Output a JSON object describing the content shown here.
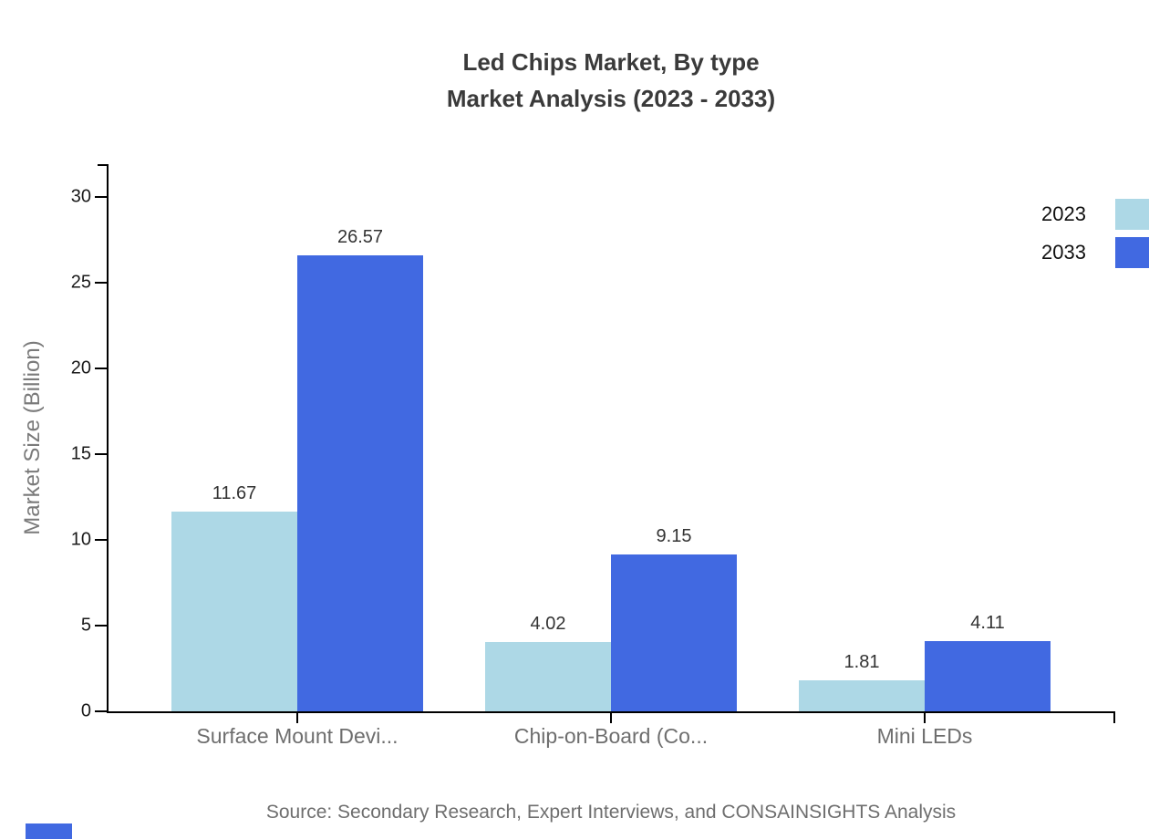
{
  "title": {
    "line1": "Led Chips Market, By type",
    "line2": "Market Analysis (2023 - 2033)"
  },
  "y_axis_title": "Market Size (Billion)",
  "source_text": "Source: Secondary Research, Expert Interviews, and CONSAINSIGHTS Analysis",
  "colors": {
    "series_2023": "#ADD8E6",
    "series_2033": "#4169E1",
    "axis": "#000000",
    "title_text": "#3a3a3a",
    "category_text": "#6e6e6e",
    "brand_mark": "#4169E1"
  },
  "legend": {
    "position": "top-right",
    "items": [
      {
        "label": "2023",
        "color": "#ADD8E6"
      },
      {
        "label": "2033",
        "color": "#4169E1"
      }
    ]
  },
  "chart_data": {
    "type": "bar",
    "title": "Led Chips Market, By type — Market Analysis (2023 - 2033)",
    "categories": [
      "Surface Mount Devi...",
      "Chip-on-Board (Co...",
      "Mini LEDs"
    ],
    "series": [
      {
        "name": "2023",
        "color": "#ADD8E6",
        "values": [
          11.67,
          4.02,
          1.81
        ]
      },
      {
        "name": "2033",
        "color": "#4169E1",
        "values": [
          26.57,
          9.15,
          4.11
        ]
      }
    ],
    "value_labels": [
      [
        "11.67",
        "4.02",
        "1.81"
      ],
      [
        "26.57",
        "9.15",
        "4.11"
      ]
    ],
    "xlabel": "",
    "ylabel": "Market Size (Billion)",
    "ylim": [
      0,
      30
    ],
    "yticks": [
      0,
      5,
      10,
      15,
      20,
      25,
      30
    ],
    "grid": false,
    "legend_position": "top-right"
  }
}
